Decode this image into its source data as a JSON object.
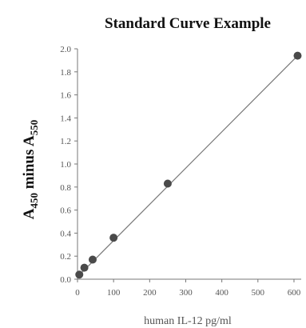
{
  "chart_data": {
    "type": "scatter",
    "title": "Standard Curve Example",
    "xlabel": "human IL-12 pg/ml",
    "ylabel": {
      "parts": [
        {
          "text": "A",
          "sub": false
        },
        {
          "text": "450",
          "sub": true
        },
        {
          "text": " minus A",
          "sub": false
        },
        {
          "text": "550",
          "sub": true
        }
      ]
    },
    "xlim": [
      0,
      620
    ],
    "ylim": [
      0,
      2.0
    ],
    "xticks": [
      0,
      100,
      200,
      300,
      400,
      500,
      600
    ],
    "xtick_labels": [
      "0",
      "100",
      "200",
      "300",
      "400",
      "500",
      "600"
    ],
    "yticks": [
      0,
      0.2,
      0.4,
      0.6,
      0.8,
      1.0,
      1.2,
      1.4,
      1.6,
      1.8,
      2.0
    ],
    "ytick_labels": [
      "0.0",
      "0.2",
      "0.4",
      "0.6",
      "0.8",
      "1.0",
      "1.2",
      "1.4",
      "1.6",
      "1.8",
      "2.0"
    ],
    "grid": false,
    "series": [
      {
        "x": [
          5,
          19,
          42,
          100,
          250,
          610
        ],
        "y": [
          0.04,
          0.1,
          0.17,
          0.36,
          0.83,
          1.94
        ]
      }
    ],
    "fit_line": {
      "x": [
        0,
        610
      ],
      "y": [
        0.02,
        1.94
      ]
    },
    "colors": {
      "points": "#4a4a4a",
      "line": "#777777",
      "axis": "#777777"
    }
  }
}
